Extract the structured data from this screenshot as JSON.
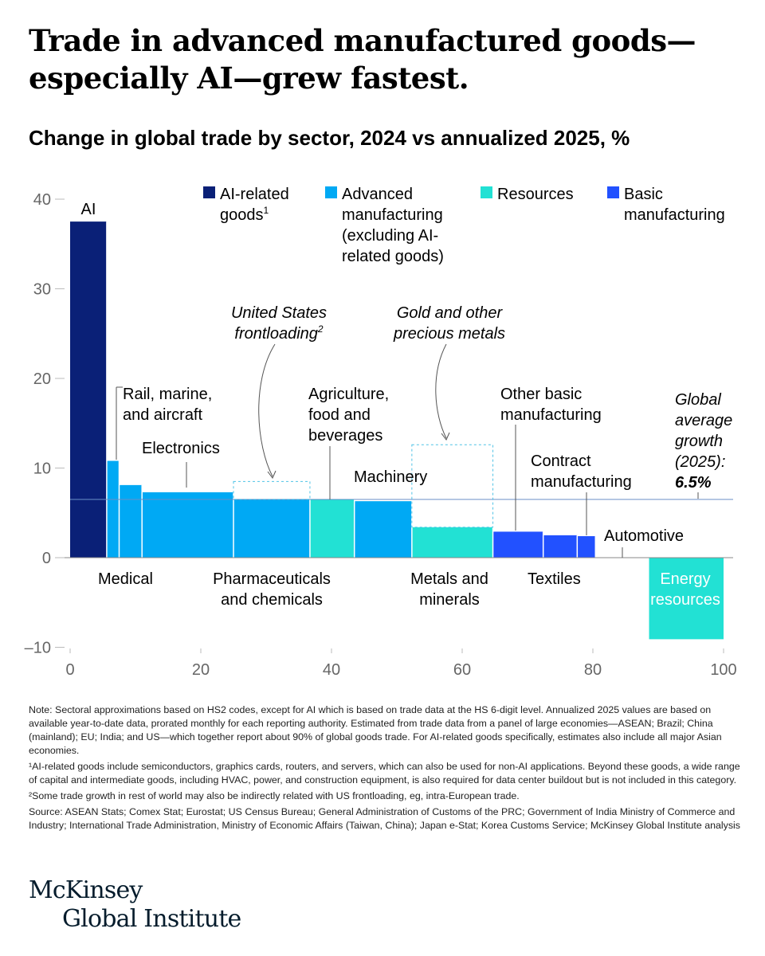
{
  "title": "Trade in advanced manufactured goods—especially AI—grew fastest.",
  "subtitle": {
    "bold": "Change in global trade by sector,",
    "rest": " 2024 vs annualized 2025, %"
  },
  "chart_data": {
    "type": "bar",
    "subtype": "variable-width (marimekko) bar chart",
    "x_axis": {
      "range": [
        0,
        100
      ],
      "ticks": [
        0,
        20,
        40,
        60,
        80,
        100
      ]
    },
    "y_axis": {
      "range": [
        -10,
        40
      ],
      "ticks": [
        -10,
        0,
        10,
        20,
        30,
        40
      ],
      "tick_labels": [
        "–10",
        "0",
        "10",
        "20",
        "30",
        "40"
      ]
    },
    "reference_line": {
      "value": 6.5,
      "label_lines": [
        "Global",
        "average",
        "growth",
        "(2025):"
      ],
      "value_label": "6.5%"
    },
    "legend": [
      {
        "name_lines": [
          "AI-related",
          "goods"
        ],
        "sup": "1",
        "color": "#0a2077"
      },
      {
        "name_lines": [
          "Advanced",
          "manufacturing",
          "(excluding AI-",
          "related goods)"
        ],
        "color": "#00a9f4"
      },
      {
        "name_lines": [
          "Resources"
        ],
        "color": "#22e1d4"
      },
      {
        "name_lines": [
          "Basic",
          "manufacturing"
        ],
        "color": "#2251ff"
      }
    ],
    "bars": [
      {
        "name": "AI",
        "group": 0,
        "x0": 0,
        "x1": 5.6,
        "value": 37.5
      },
      {
        "name": "Medical",
        "group": 1,
        "x0": 5.6,
        "x1": 7.5,
        "value": 10.8
      },
      {
        "name": "Rail, marine, and aircraft",
        "group": 1,
        "x0": 7.5,
        "x1": 11,
        "value": 8.1
      },
      {
        "name": "Electronics",
        "group": 1,
        "x0": 11,
        "x1": 25,
        "value": 7.3
      },
      {
        "name": "Pharmaceuticals and chemicals",
        "group": 1,
        "x0": 25,
        "x1": 36.7,
        "value": 6.5
      },
      {
        "name": "Agriculture, food and beverages",
        "group": 2,
        "x0": 36.7,
        "x1": 43.5,
        "value": 6.5
      },
      {
        "name": "Machinery",
        "group": 1,
        "x0": 43.5,
        "x1": 52.3,
        "value": 6.3
      },
      {
        "name": "Metals and minerals",
        "group": 2,
        "x0": 52.3,
        "x1": 64.7,
        "value": 3.4
      },
      {
        "name": "Other basic manufacturing",
        "group": 3,
        "x0": 64.7,
        "x1": 72.4,
        "value": 2.9
      },
      {
        "name": "Textiles",
        "group": 3,
        "x0": 72.4,
        "x1": 77.6,
        "value": 2.5
      },
      {
        "name": "Contract manufacturing",
        "group": 3,
        "x0": 77.6,
        "x1": 80.4,
        "value": 2.4
      },
      {
        "name": "Automotive",
        "group": 3,
        "x0": 80.4,
        "x1": 87.7,
        "value": 0
      },
      {
        "name": "Energy resources",
        "group": 2,
        "x0": 88.6,
        "x1": 100,
        "value": -9.1
      }
    ],
    "dashed_boxes": [
      {
        "x0": 25,
        "x1": 36.7,
        "y0": 6.5,
        "y1": 8.5
      },
      {
        "x0": 52.3,
        "x1": 64.7,
        "y0": 3.4,
        "y1": 12.6
      }
    ],
    "annotations": [
      {
        "lines": [
          "United States",
          "frontloading"
        ],
        "sup": "2",
        "italic": true
      },
      {
        "lines": [
          "Gold and other",
          "precious metals"
        ],
        "italic": true
      }
    ]
  },
  "labels": {
    "ai": "AI",
    "rail": [
      "Rail, marine,",
      "and aircraft"
    ],
    "electronics": "Electronics",
    "agriculture": [
      "Agriculture,",
      "food and",
      "beverages"
    ],
    "machinery": "Machinery",
    "other_basic": [
      "Other basic",
      "manufacturing"
    ],
    "contract": [
      "Contract",
      "manufacturing"
    ],
    "automotive": "Automotive",
    "medical": "Medical",
    "pharma": [
      "Pharmaceuticals",
      "and chemicals"
    ],
    "metals": [
      "Metals and",
      "minerals"
    ],
    "textiles": "Textiles",
    "energy": [
      "Energy",
      "resources"
    ]
  },
  "notes": [
    "Note: Sectoral approximations based on HS2 codes, except for AI which is based on trade data at the HS 6-digit level. Annualized 2025 values are based on available year-to-date data, prorated monthly for each reporting authority. Estimated from trade data from a panel of large economies—ASEAN; Brazil; China (mainland); EU; India; and US—which together report about 90% of global goods trade. For AI-related goods specifically, estimates also include all major Asian economies.",
    "¹AI-related goods include semiconductors, graphics cards, routers, and servers, which can also be used for non-AI applications. Beyond these goods, a wide range of capital and intermediate goods, including HVAC, power, and construction equipment, is also required for data center buildout but is not included in this category.",
    "²Some trade growth in rest of world may also be indirectly related with US frontloading, eg, intra-European trade.",
    "Source: ASEAN Stats; Comex Stat; Eurostat; US Census Bureau; General Administration of Customs of the PRC; Government of India Ministry of Commerce and Industry; International Trade Administration, Ministry of Economic Affairs (Taiwan, China); Japan e-Stat; Korea Customs Service; McKinsey Global Institute analysis"
  ],
  "logo": [
    "McKinsey",
    "Global Institute"
  ]
}
